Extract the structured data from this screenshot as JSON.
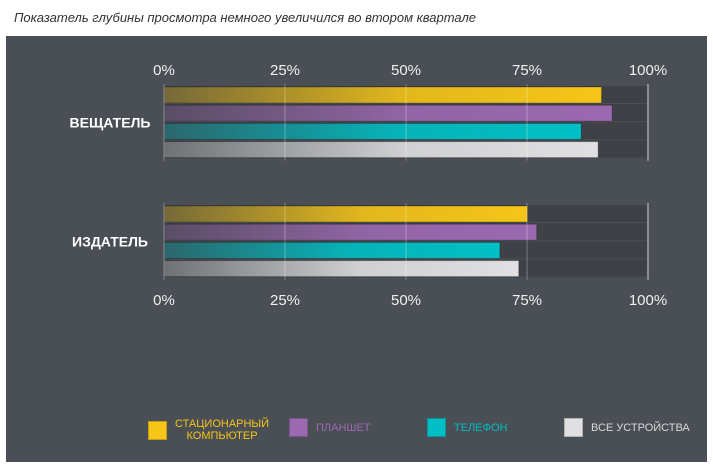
{
  "title": "Показатель глубины просмотра немного увеличился во втором квартале",
  "chart_data": {
    "type": "bar",
    "orientation": "horizontal",
    "categories": [
      "ВЕЩАТЕЛЬ",
      "ИЗДАТЕЛЬ"
    ],
    "xlim": [
      0,
      100
    ],
    "ticks": [
      "0%",
      "25%",
      "50%",
      "75%",
      "100%"
    ],
    "series": [
      {
        "name": "СТАЦИОНАРНЫЙ КОМПЬЮТЕР",
        "name_lines": [
          "СТАЦИОНАРНЫЙ",
          "КОМПЬЮТЕР"
        ],
        "color": "#f5c518",
        "values": [
          90.4,
          75.1
        ]
      },
      {
        "name": "ПЛАНШЕТ",
        "color": "#9b69b0",
        "values": [
          92.6,
          77
        ]
      },
      {
        "name": "ТЕЛЕФОН",
        "color": "#00bfc4",
        "values": [
          86.2,
          69.4
        ]
      },
      {
        "name": "ВСЕ УСТРОЙСТВА",
        "color": "#e0e0e2",
        "values": [
          89.7,
          73.3
        ]
      }
    ],
    "legend_placement": "bottom",
    "grid": true
  }
}
